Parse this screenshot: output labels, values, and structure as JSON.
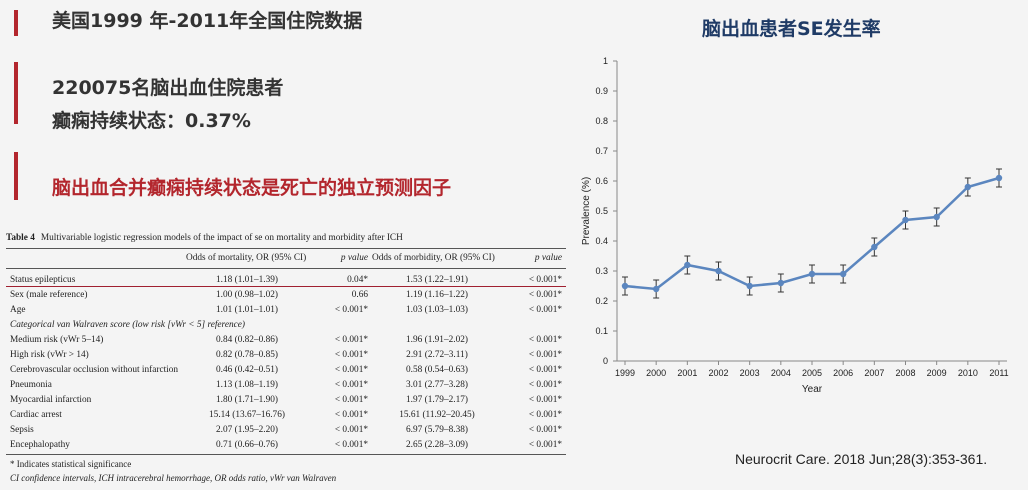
{
  "slide": {
    "title1": "美国1999 年-2011年全国住院数据",
    "title2": "220075名脑出血住院患者",
    "title3": "癫痫持续状态：0.37%",
    "title4": "脑出血合并癫痫持续状态是死亡的独立预测因子",
    "accent_color": "#b3262d"
  },
  "table": {
    "caption_label": "Table 4",
    "caption_text": "Multivariable logistic regression models of the impact of se on mortality and morbidity after ICH",
    "headers": [
      "",
      "Odds of mortality, OR (95% CI)",
      "p value",
      "Odds of morbidity, OR (95% CI)",
      "p value"
    ],
    "rows": [
      [
        "Status epilepticus",
        "1.18 (1.01–1.39)",
        "0.04*",
        "1.53 (1.22–1.91)",
        "< 0.001*"
      ],
      [
        "Sex (male reference)",
        "1.00 (0.98–1.02)",
        "0.66",
        "1.19 (1.16–1.22)",
        "< 0.001*"
      ],
      [
        "Age",
        "1.01 (1.01–1.01)",
        "< 0.001*",
        "1.03 (1.03–1.03)",
        "< 0.001*"
      ],
      [
        "Categorical van Walraven score (low risk [vWr < 5] reference)",
        "",
        "",
        "",
        ""
      ],
      [
        "Medium risk (vWr 5–14)",
        "0.84 (0.82–0.86)",
        "< 0.001*",
        "1.96 (1.91–2.02)",
        "< 0.001*"
      ],
      [
        "High risk (vWr > 14)",
        "0.82 (0.78–0.85)",
        "< 0.001*",
        "2.91 (2.72–3.11)",
        "< 0.001*"
      ],
      [
        "Cerebrovascular occlusion without infarction",
        "0.46 (0.42–0.51)",
        "< 0.001*",
        "0.58 (0.54–0.63)",
        "< 0.001*"
      ],
      [
        "Pneumonia",
        "1.13 (1.08–1.19)",
        "< 0.001*",
        "3.01 (2.77–3.28)",
        "< 0.001*"
      ],
      [
        "Myocardial infarction",
        "1.80 (1.71–1.90)",
        "< 0.001*",
        "1.97 (1.79–2.17)",
        "< 0.001*"
      ],
      [
        "Cardiac arrest",
        "15.14 (13.67–16.76)",
        "< 0.001*",
        "15.61 (11.92–20.45)",
        "< 0.001*"
      ],
      [
        "Sepsis",
        "2.07 (1.95–2.20)",
        "< 0.001*",
        "6.97 (5.79–8.38)",
        "< 0.001*"
      ],
      [
        "Encephalopathy",
        "0.71 (0.66–0.76)",
        "< 0.001*",
        "2.65 (2.28–3.09)",
        "< 0.001*"
      ]
    ],
    "footnotes": [
      "* Indicates statistical significance",
      "CI confidence intervals, ICH intracerebral hemorrhage, OR odds ratio, vWr van Walraven"
    ]
  },
  "chart_title": "脑出血患者SE发生率",
  "citation": "Neurocrit Care. 2018 Jun;28(3):353-361.",
  "chart_data": {
    "type": "line",
    "title": "",
    "xlabel": "Year",
    "ylabel": "Prevalence (%)",
    "x": [
      "1999",
      "2000",
      "2001",
      "2002",
      "2003",
      "2004",
      "2005",
      "2006",
      "2007",
      "2008",
      "2009",
      "2010",
      "2011"
    ],
    "series": [
      {
        "values": [
          0.25,
          0.24,
          0.32,
          0.3,
          0.25,
          0.26,
          0.29,
          0.29,
          0.38,
          0.47,
          0.48,
          0.58,
          0.61
        ],
        "error": [
          0.03,
          0.03,
          0.03,
          0.03,
          0.03,
          0.03,
          0.03,
          0.03,
          0.03,
          0.03,
          0.03,
          0.03,
          0.03
        ],
        "color": "#5b86bf"
      }
    ],
    "ylim": [
      0,
      1
    ],
    "yticks": [
      "0",
      "0.1",
      "0.2",
      "0.3",
      "0.4",
      "0.5",
      "0.6",
      "0.7",
      "0.8",
      "0.9",
      "1"
    ],
    "grid": false
  }
}
